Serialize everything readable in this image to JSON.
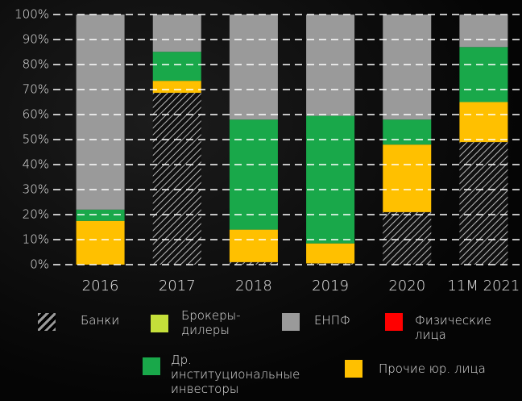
{
  "chart_data": {
    "type": "stacked_bar",
    "categories": [
      "2016",
      "2017",
      "2018",
      "2019",
      "2020",
      "11M 2021"
    ],
    "series": [
      {
        "name": "Банки",
        "color": "hatch",
        "values": [
          0,
          68.7,
          1,
          0.5,
          21,
          49
        ]
      },
      {
        "name": "Прочие юр. лица",
        "color": "#ffc000",
        "values": [
          17.5,
          4.8,
          13,
          8,
          27,
          16
        ]
      },
      {
        "name": "Др. институциональные инвесторы",
        "color": "#19a84a",
        "values": [
          4.5,
          11.6,
          44,
          51,
          10,
          22
        ]
      },
      {
        "name": "Брокеры-дилеры",
        "color": "#c4df3a",
        "values": [
          0,
          0,
          0,
          0,
          0,
          0
        ]
      },
      {
        "name": "Физические лица",
        "color": "#ff0000",
        "values": [
          0,
          0,
          0,
          0,
          0,
          0
        ]
      },
      {
        "name": "ЕНПФ",
        "color": "#9a9a9a",
        "values": [
          78,
          14.9,
          42,
          40.5,
          42,
          13
        ]
      }
    ],
    "ylim": [
      0,
      100
    ],
    "yticks": [
      {
        "value": 0,
        "label": "0%"
      },
      {
        "value": 10,
        "label": "10%"
      },
      {
        "value": 20,
        "label": "20%"
      },
      {
        "value": 30,
        "label": "30%"
      },
      {
        "value": 40,
        "label": "40%"
      },
      {
        "value": 50,
        "label": "50%"
      },
      {
        "value": 60,
        "label": "60%"
      },
      {
        "value": 70,
        "label": "70%"
      },
      {
        "value": 80,
        "label": "80%"
      },
      {
        "value": 90,
        "label": "90%"
      },
      {
        "value": 100,
        "label": "100%"
      }
    ],
    "grid": true
  }
}
